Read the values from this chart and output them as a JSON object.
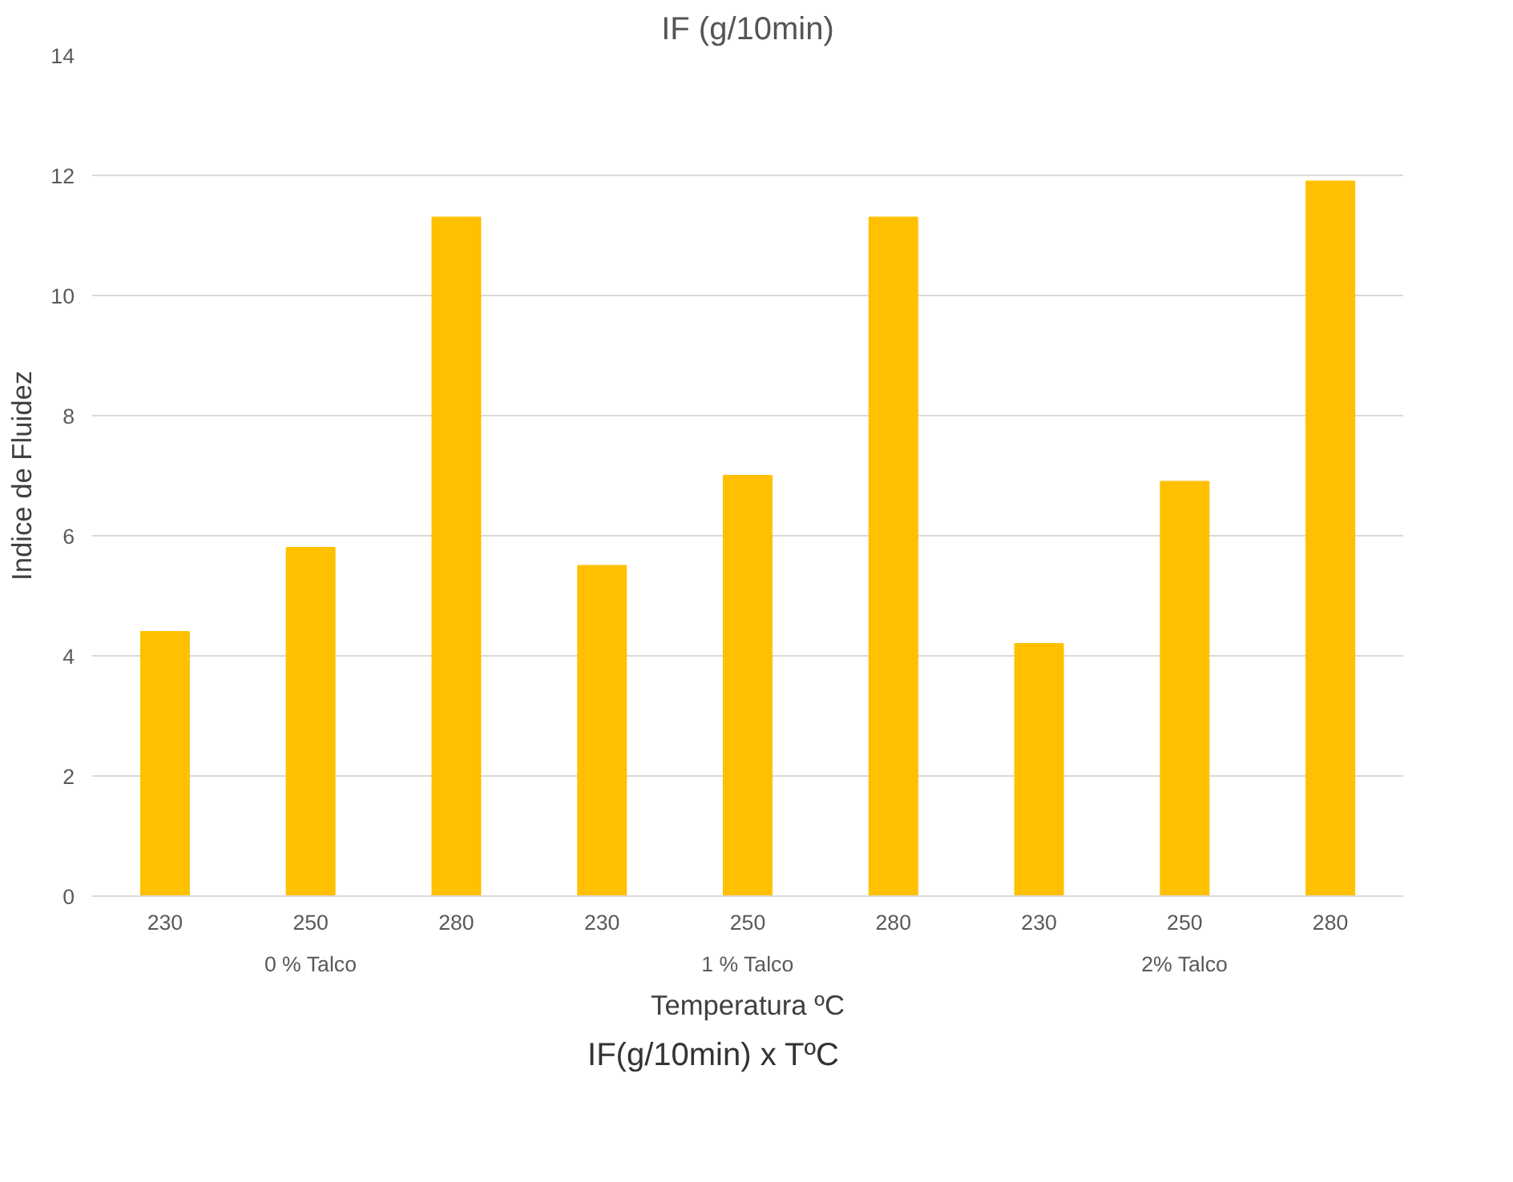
{
  "chart_data": {
    "type": "bar",
    "title": "IF (g/10min)",
    "xlabel": "Temperatura ºC",
    "ylabel": "Indice de Fluidez",
    "categories": [
      "230",
      "250",
      "280",
      "230",
      "250",
      "280",
      "230",
      "250",
      "280"
    ],
    "values": [
      4.4,
      5.8,
      11.3,
      5.5,
      7.0,
      11.3,
      4.2,
      6.9,
      11.9
    ],
    "color": "#ffc000",
    "ylim": [
      0,
      14
    ],
    "yticks": [
      0,
      2,
      4,
      6,
      8,
      10,
      12,
      14
    ],
    "grid": "y",
    "annotations": [
      "0 % Talco",
      "1 % Talco",
      "2% Talco",
      "IF(g/10min) x TºC"
    ]
  }
}
